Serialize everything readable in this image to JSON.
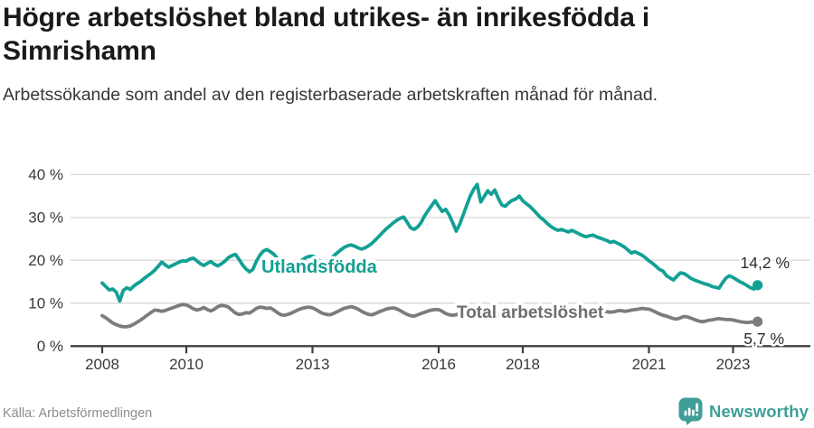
{
  "header": {
    "title": "Högre arbetslöshet bland utrikes- än inrikesfödda i Simrishamn",
    "subtitle": "Arbetssökande som andel av den registerbaserade arbetskraften månad för månad."
  },
  "footer": {
    "source": "Källa: Arbetsförmedlingen",
    "brand": "Newsworthy"
  },
  "colors": {
    "accent_teal": "#13a094",
    "line_gray": "#7c7c7c",
    "label_gray": "#6e6e6e",
    "value_label": "#2d2d2d",
    "grid": "#d9d9d9",
    "axis": "#3f3f3f",
    "brand_teal": "#3f9e97"
  },
  "chart_data": {
    "type": "line",
    "title": "Högre arbetslöshet bland utrikes- än inrikesfödda i Simrishamn",
    "x_start": "2008-01",
    "x_end": "2023-08",
    "x_interval": "monthly",
    "ylim": [
      0,
      40
    ],
    "grid": "horizontal",
    "yticks": [
      {
        "label": "0 %",
        "value": 0
      },
      {
        "label": "10 %",
        "value": 10
      },
      {
        "label": "20 %",
        "value": 20
      },
      {
        "label": "30 %",
        "value": 30
      },
      {
        "label": "40 %",
        "value": 40
      }
    ],
    "xticks": [
      {
        "label": "2008",
        "year": 2008
      },
      {
        "label": "2010",
        "year": 2010
      },
      {
        "label": "2013",
        "year": 2013
      },
      {
        "label": "2016",
        "year": 2016
      },
      {
        "label": "2018",
        "year": 2018
      },
      {
        "label": "2021",
        "year": 2021
      },
      {
        "label": "2023",
        "year": 2023
      }
    ],
    "series": [
      {
        "name": "Utlandsfödda",
        "color": "#13a094",
        "end_label": "14,2 %",
        "end_value": 14.2,
        "values": [
          14.7,
          13.9,
          13.1,
          13.3,
          12.6,
          10.5,
          13.0,
          13.6,
          13.2,
          14.0,
          14.6,
          15.1,
          15.8,
          16.4,
          17.0,
          17.7,
          18.6,
          19.6,
          18.9,
          18.4,
          18.8,
          19.2,
          19.6,
          19.9,
          19.8,
          20.3,
          20.5,
          19.9,
          19.2,
          18.8,
          19.3,
          19.7,
          19.1,
          18.7,
          19.2,
          19.8,
          20.6,
          21.1,
          21.4,
          20.3,
          19.0,
          18.0,
          17.3,
          17.9,
          19.8,
          21.2,
          22.2,
          22.5,
          22.0,
          21.4,
          20.4,
          19.2,
          18.2,
          17.6,
          17.9,
          18.5,
          19.3,
          20.0,
          20.6,
          20.9,
          21.0,
          20.6,
          19.9,
          19.3,
          19.7,
          20.3,
          21.0,
          21.7,
          22.4,
          23.0,
          23.4,
          23.6,
          23.3,
          22.9,
          22.6,
          22.9,
          23.4,
          24.0,
          24.8,
          25.6,
          26.5,
          27.3,
          28.0,
          28.7,
          29.3,
          29.8,
          30.1,
          28.9,
          27.6,
          27.2,
          27.8,
          28.8,
          30.4,
          31.6,
          32.8,
          33.9,
          32.6,
          31.4,
          31.9,
          30.6,
          28.8,
          26.8,
          28.4,
          30.6,
          32.8,
          35.0,
          36.6,
          37.7,
          33.6,
          34.9,
          36.2,
          35.4,
          36.4,
          34.5,
          32.9,
          32.6,
          33.4,
          34.0,
          34.3,
          35.0,
          33.9,
          33.2,
          32.6,
          31.8,
          30.9,
          30.0,
          29.4,
          28.6,
          27.9,
          27.4,
          27.0,
          27.2,
          26.9,
          26.6,
          27.0,
          26.6,
          26.2,
          25.8,
          25.5,
          25.7,
          25.9,
          25.5,
          25.2,
          24.9,
          24.6,
          24.2,
          24.4,
          24.0,
          23.6,
          23.1,
          22.4,
          21.7,
          22.0,
          21.6,
          21.2,
          20.6,
          19.9,
          19.3,
          18.6,
          17.9,
          17.5,
          16.4,
          15.9,
          15.4,
          16.3,
          17.1,
          16.9,
          16.4,
          15.8,
          15.4,
          15.1,
          14.8,
          14.5,
          14.3,
          13.9,
          13.7,
          13.5,
          14.8,
          15.9,
          16.4,
          16.0,
          15.5,
          15.0,
          14.6,
          14.1,
          13.6,
          13.3,
          14.2
        ]
      },
      {
        "name": "Total arbetslöshet",
        "color": "#7c7c7c",
        "end_label": "5,7 %",
        "end_value": 5.7,
        "values": [
          7.1,
          6.6,
          6.0,
          5.4,
          5.0,
          4.7,
          4.5,
          4.5,
          4.7,
          5.1,
          5.6,
          6.1,
          6.7,
          7.3,
          7.9,
          8.4,
          8.3,
          8.1,
          8.3,
          8.6,
          8.9,
          9.2,
          9.5,
          9.7,
          9.6,
          9.2,
          8.7,
          8.4,
          8.6,
          9.0,
          8.5,
          8.2,
          8.6,
          9.2,
          9.5,
          9.4,
          9.1,
          8.4,
          7.7,
          7.4,
          7.5,
          7.8,
          7.7,
          8.2,
          8.8,
          9.1,
          9.0,
          8.8,
          8.9,
          8.4,
          7.8,
          7.3,
          7.2,
          7.4,
          7.7,
          8.1,
          8.5,
          8.8,
          9.0,
          9.1,
          8.9,
          8.5,
          8.0,
          7.6,
          7.4,
          7.3,
          7.6,
          8.0,
          8.4,
          8.8,
          9.0,
          9.2,
          9.0,
          8.6,
          8.1,
          7.7,
          7.4,
          7.3,
          7.6,
          8.0,
          8.3,
          8.6,
          8.8,
          8.9,
          8.7,
          8.3,
          7.8,
          7.4,
          7.1,
          7.0,
          7.3,
          7.6,
          7.9,
          8.2,
          8.4,
          8.5,
          8.5,
          8.1,
          7.6,
          7.3,
          7.2,
          7.3,
          7.6,
          7.9,
          8.2,
          8.4,
          8.5,
          8.6,
          8.4,
          8.0,
          7.6,
          7.3,
          7.2,
          7.3,
          7.5,
          7.8,
          8.1,
          8.3,
          8.5,
          8.5,
          8.3,
          7.9,
          7.4,
          7.1,
          6.9,
          6.8,
          7.0,
          7.3,
          7.6,
          7.8,
          8.0,
          8.0,
          7.8,
          7.5,
          7.2,
          7.0,
          6.9,
          7.0,
          7.2,
          7.5,
          7.7,
          7.9,
          8.0,
          8.1,
          8.0,
          7.9,
          8.0,
          8.2,
          8.3,
          8.1,
          8.2,
          8.4,
          8.5,
          8.6,
          8.8,
          8.7,
          8.6,
          8.3,
          7.9,
          7.5,
          7.2,
          7.0,
          6.7,
          6.4,
          6.3,
          6.6,
          6.9,
          6.8,
          6.5,
          6.2,
          5.9,
          5.7,
          5.8,
          6.0,
          6.1,
          6.3,
          6.4,
          6.3,
          6.2,
          6.2,
          6.1,
          5.9,
          5.7,
          5.6,
          5.5,
          5.6,
          5.6,
          5.7
        ]
      }
    ]
  }
}
